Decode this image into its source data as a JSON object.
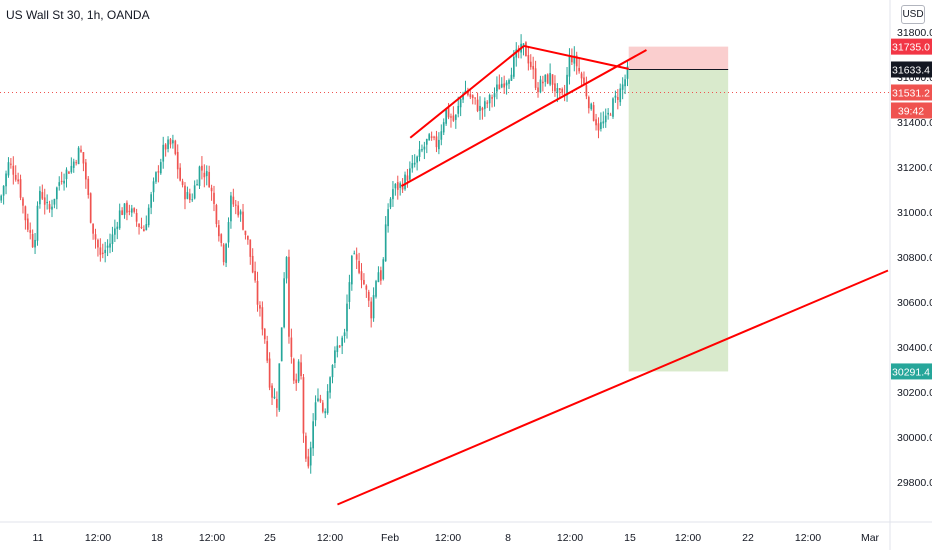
{
  "header": {
    "symbol_label": "US Wall St 30, 1h, OANDA",
    "currency_button": "USD"
  },
  "colors": {
    "up": "#26a69a",
    "down": "#ef5350",
    "trendline": "#ff0000",
    "stop_zone": "#f9c6c6",
    "target_zone": "#d5e8c6",
    "axis_line": "#e0e3eb"
  },
  "chart_data": {
    "type": "candlestick",
    "x_ticks": [
      "11",
      "12:00",
      "18",
      "12:00",
      "25",
      "12:00",
      "Feb",
      "12:00",
      "8",
      "12:00",
      "15",
      "12:00",
      "22",
      "12:00",
      "Mar"
    ],
    "y_ticks": [
      31800.0,
      31600.0,
      31400.0,
      31200.0,
      31000.0,
      30800.0,
      30600.0,
      30400.0,
      30200.0,
      30000.0,
      29800.0
    ],
    "ylim": [
      29700,
      31880
    ],
    "price_tags": {
      "stop": "31735.0",
      "current": "31633.4",
      "last": "31531.2",
      "countdown": "39:42",
      "target": "30291.4"
    },
    "close_path": [
      [
        0.0,
        31050
      ],
      [
        0.01,
        31220
      ],
      [
        0.02,
        31150
      ],
      [
        0.028,
        30980
      ],
      [
        0.038,
        30850
      ],
      [
        0.045,
        31100
      ],
      [
        0.055,
        31000
      ],
      [
        0.068,
        31150
      ],
      [
        0.08,
        31200
      ],
      [
        0.09,
        31280
      ],
      [
        0.095,
        31200
      ],
      [
        0.103,
        30950
      ],
      [
        0.113,
        30800
      ],
      [
        0.125,
        30870
      ],
      [
        0.135,
        31000
      ],
      [
        0.145,
        31020
      ],
      [
        0.155,
        30950
      ],
      [
        0.162,
        30920
      ],
      [
        0.175,
        31150
      ],
      [
        0.185,
        31290
      ],
      [
        0.195,
        31300
      ],
      [
        0.205,
        31100
      ],
      [
        0.215,
        31050
      ],
      [
        0.225,
        31200
      ],
      [
        0.235,
        31150
      ],
      [
        0.245,
        30950
      ],
      [
        0.252,
        30800
      ],
      [
        0.26,
        31050
      ],
      [
        0.27,
        31000
      ],
      [
        0.28,
        30850
      ],
      [
        0.29,
        30600
      ],
      [
        0.298,
        30450
      ],
      [
        0.305,
        30200
      ],
      [
        0.312,
        30150
      ],
      [
        0.318,
        30550
      ],
      [
        0.322,
        30900
      ],
      [
        0.326,
        30400
      ],
      [
        0.332,
        30200
      ],
      [
        0.338,
        30350
      ],
      [
        0.342,
        30000
      ],
      [
        0.346,
        29800
      ],
      [
        0.352,
        30050
      ],
      [
        0.358,
        30200
      ],
      [
        0.365,
        30100
      ],
      [
        0.372,
        30300
      ],
      [
        0.38,
        30400
      ],
      [
        0.388,
        30450
      ],
      [
        0.392,
        30650
      ],
      [
        0.397,
        30800
      ],
      [
        0.405,
        30750
      ],
      [
        0.412,
        30650
      ],
      [
        0.418,
        30550
      ],
      [
        0.425,
        30750
      ],
      [
        0.43,
        30700
      ],
      [
        0.436,
        31000
      ],
      [
        0.442,
        31100
      ],
      [
        0.452,
        31120
      ],
      [
        0.462,
        31180
      ],
      [
        0.472,
        31250
      ],
      [
        0.482,
        31320
      ],
      [
        0.492,
        31300
      ],
      [
        0.502,
        31450
      ],
      [
        0.512,
        31400
      ],
      [
        0.522,
        31550
      ],
      [
        0.532,
        31500
      ],
      [
        0.542,
        31450
      ],
      [
        0.552,
        31500
      ],
      [
        0.562,
        31560
      ],
      [
        0.572,
        31600
      ],
      [
        0.582,
        31700
      ],
      [
        0.59,
        31730
      ],
      [
        0.598,
        31650
      ],
      [
        0.605,
        31550
      ],
      [
        0.612,
        31580
      ],
      [
        0.62,
        31600
      ],
      [
        0.628,
        31520
      ],
      [
        0.635,
        31500
      ],
      [
        0.642,
        31700
      ],
      [
        0.65,
        31650
      ],
      [
        0.658,
        31560
      ],
      [
        0.666,
        31450
      ],
      [
        0.674,
        31380
      ],
      [
        0.682,
        31400
      ],
      [
        0.69,
        31480
      ],
      [
        0.7,
        31550
      ],
      [
        0.708,
        31633
      ]
    ],
    "trendlines": [
      {
        "t1": 0.462,
        "p1": 31330,
        "t2": 0.59,
        "p2": 31738
      },
      {
        "t1": 0.59,
        "p1": 31738,
        "t2": 0.708,
        "p2": 31636
      },
      {
        "t1": 0.452,
        "p1": 31115,
        "t2": 0.728,
        "p2": 31720
      },
      {
        "t1": 0.38,
        "p1": 29700,
        "t2": 1.0,
        "p2": 30740
      }
    ],
    "position": {
      "t_start": 0.708,
      "t_end": 0.82,
      "entry": 31633.4,
      "stop": 31735.0,
      "target": 30291.4
    }
  }
}
